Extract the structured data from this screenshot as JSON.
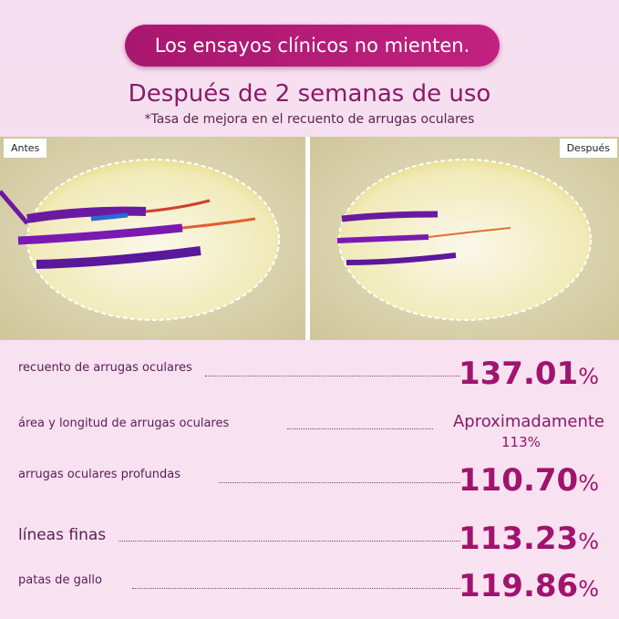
{
  "banner": "Los ensayos clínicos no mienten.",
  "title": "Después de 2 semanas de uso",
  "subtitle": "*Tasa de mejora en el recuento de arrugas oculares",
  "images": {
    "before": "Antes",
    "after": "Después"
  },
  "rows": [
    {
      "label": "recuento de arrugas oculares",
      "value": "137.01",
      "unit": "%"
    },
    {
      "label": "área y longitud de arrugas oculares",
      "value_text": "Aproximadamente",
      "value_note": "113%"
    },
    {
      "label": "arrugas oculares profundas",
      "value": "110.70",
      "unit": "%"
    },
    {
      "label": "líneas finas",
      "value": "113.23",
      "unit": "%"
    },
    {
      "label": "patas de gallo",
      "value": "119.86",
      "unit": "%"
    }
  ]
}
